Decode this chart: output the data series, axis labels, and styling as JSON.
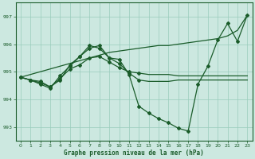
{
  "background_color": "#cce8e0",
  "grid_color": "#99ccbb",
  "line_color": "#1a5c2a",
  "xlabel": "Graphe pression niveau de la mer (hPa)",
  "ylim": [
    992.5,
    997.5
  ],
  "yticks": [
    993,
    994,
    995,
    996,
    997
  ],
  "xlim": [
    -0.5,
    23.5
  ],
  "xticks": [
    0,
    1,
    2,
    3,
    4,
    5,
    6,
    7,
    8,
    9,
    10,
    11,
    12,
    13,
    14,
    15,
    16,
    17,
    18,
    19,
    20,
    21,
    22,
    23
  ],
  "y_linear": [
    994.8,
    994.9,
    995.0,
    995.1,
    995.2,
    995.3,
    995.4,
    995.5,
    995.6,
    995.7,
    995.75,
    995.8,
    995.85,
    995.9,
    995.95,
    995.95,
    996.0,
    996.05,
    996.1,
    996.15,
    996.2,
    996.3,
    996.5,
    997.05
  ],
  "y_main": [
    994.8,
    994.7,
    994.65,
    994.45,
    994.7,
    995.25,
    995.55,
    995.95,
    995.85,
    995.5,
    995.45,
    994.9,
    993.75,
    993.5,
    993.3,
    993.15,
    992.95,
    992.85,
    994.55,
    995.2,
    996.15,
    996.75,
    996.1,
    997.05
  ],
  "y_mid1": [
    994.8,
    994.7,
    994.55,
    994.4,
    994.85,
    995.2,
    995.55,
    995.85,
    995.95,
    995.5,
    995.3,
    994.95,
    994.7,
    994.65,
    994.65,
    994.65,
    994.7,
    994.7,
    994.7,
    994.7,
    994.7,
    994.7,
    994.7,
    994.7
  ],
  "y_mid2": [
    994.8,
    994.7,
    994.6,
    994.45,
    994.75,
    995.1,
    995.25,
    995.5,
    995.55,
    995.35,
    995.15,
    995.0,
    994.95,
    994.9,
    994.9,
    994.9,
    994.85,
    994.85,
    994.85,
    994.85,
    994.85,
    994.85,
    994.85,
    994.85
  ]
}
